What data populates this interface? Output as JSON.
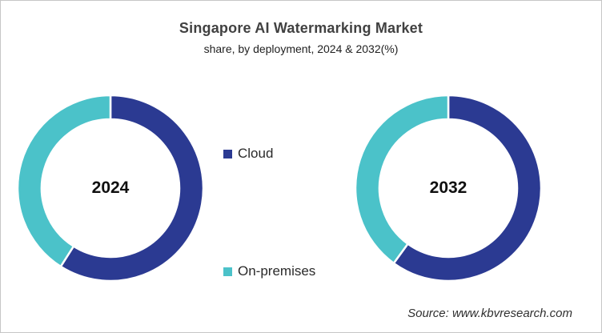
{
  "page": {
    "background_color": "#ffffff",
    "border_color": "#c6c6c6"
  },
  "header": {
    "title": "Singapore AI Watermarking Market",
    "subtitle": "share, by deployment, 2024 & 2032(%)"
  },
  "legend": {
    "items": [
      {
        "label": "Cloud",
        "marker": "square-icon",
        "color": "#2b3a92"
      },
      {
        "label": "On-premises",
        "marker": "square-icon",
        "color": "#4bc2c9"
      }
    ]
  },
  "source": {
    "text": "Source: www.kbvresearch.com"
  },
  "chart_data": {
    "type": "pie",
    "subtype": "donut",
    "title": "Singapore AI Watermarking Market",
    "subtitle": "share, by deployment, 2024 & 2032(%)",
    "units": "%",
    "categories": [
      "Cloud",
      "On-premises"
    ],
    "colors": [
      "#2b3a92",
      "#4bc2c9"
    ],
    "series": [
      {
        "name": "2024",
        "values": [
          59,
          41
        ]
      },
      {
        "name": "2032",
        "values": [
          60,
          40
        ]
      }
    ],
    "start_angle_deg": 0,
    "direction": "clockwise",
    "slice_border_color": "#ffffff",
    "legend_position": "center-between-donuts",
    "data_labels_shown": false,
    "center_labels": [
      "2024",
      "2032"
    ]
  }
}
